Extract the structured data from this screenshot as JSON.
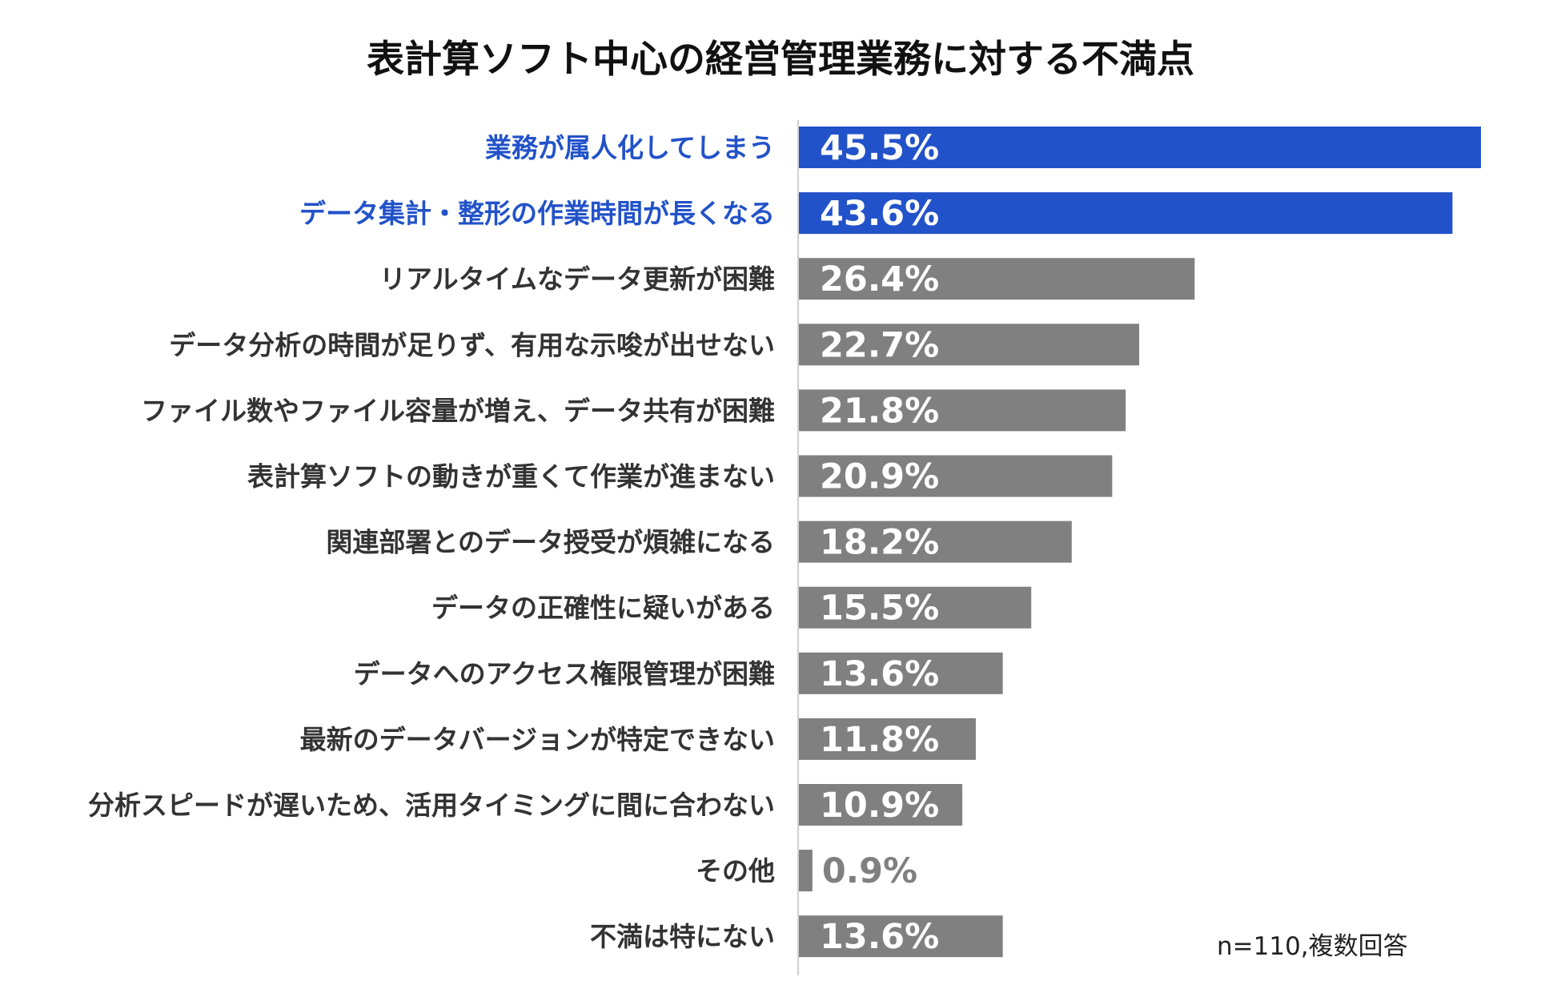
{
  "chart_data": {
    "type": "bar",
    "orientation": "horizontal",
    "title": "表計算ソフト中心の経営管理業務に対する不満点",
    "categories": [
      "業務が属人化してしまう",
      "データ集計・整形の作業時間が長くなる",
      "リアルタイムなデータ更新が困難",
      "データ分析の時間が足りず、有用な示唆が出せない",
      "ファイル数やファイル容量が増え、データ共有が困難",
      "表計算ソフトの動きが重くて作業が進まない",
      "関連部署とのデータ授受が煩雑になる",
      "データの正確性に疑いがある",
      "データへのアクセス権限管理が困難",
      "最新のデータバージョンが特定できない",
      "分析スピードが遅いため、活用タイミングに間に合わない",
      "その他",
      "不満は特にない"
    ],
    "values": [
      45.5,
      43.6,
      26.4,
      22.7,
      21.8,
      20.9,
      18.2,
      15.5,
      13.6,
      11.8,
      10.9,
      0.9,
      13.6
    ],
    "value_labels": [
      "45.5%",
      "43.6%",
      "26.4%",
      "22.7%",
      "21.8%",
      "20.9%",
      "18.2%",
      "15.5%",
      "13.6%",
      "11.8%",
      "10.9%",
      "0.9%",
      "13.6%"
    ],
    "highlighted": [
      true,
      true,
      false,
      false,
      false,
      false,
      false,
      false,
      false,
      false,
      false,
      false,
      false
    ],
    "xlim": [
      0,
      45.5
    ],
    "xlabel": "",
    "ylabel": "",
    "grid": false,
    "note": "n=110,複数回答",
    "colors": {
      "highlight": "#2252C9",
      "default": "#808080",
      "highlight_text": "#2252C9",
      "default_text": "#333333",
      "value_text": "#ffffff",
      "small_value_text": "#808080",
      "axis": "#d0d0d0"
    }
  }
}
